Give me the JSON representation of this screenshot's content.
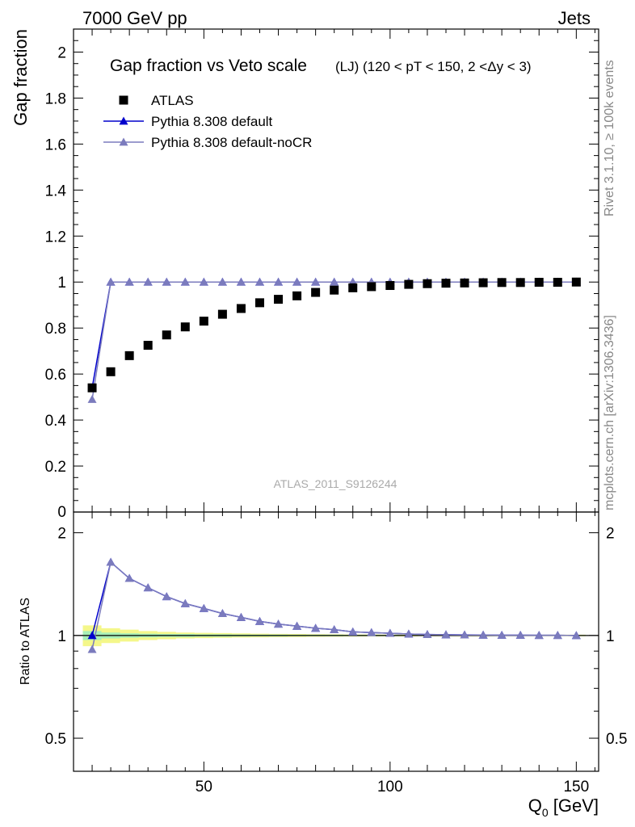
{
  "header": {
    "left": "7000 GeV pp",
    "right": "Jets"
  },
  "side_labels": {
    "rivet": "Rivet 3.1.10, ≥ 100k events",
    "mcplots": "mcplots.cern.ch [arXiv:1306.3436]"
  },
  "watermark": "ATLAS_2011_S9126244",
  "colors": {
    "data": "#000000",
    "default": "#0000cc",
    "noCR": "#7b7bbd",
    "band_inner": "#a8f0b8",
    "band_outer": "#f4f78a"
  },
  "chart_data": [
    {
      "type": "scatter",
      "title": "Gap fraction vs Veto scale",
      "subtitle": "(LJ) (120 < pT < 150, 2 <Δy < 3)",
      "ylabel": "Gap fraction",
      "xlabel": "Q0 [GeV]",
      "xlim": [
        15,
        156
      ],
      "ylim": [
        0,
        2.1
      ],
      "x_ticks": [
        50,
        100,
        150
      ],
      "y_ticks": [
        0.2,
        0.4,
        0.6,
        0.8,
        1,
        1.2,
        1.4,
        1.6,
        1.8,
        2
      ],
      "y_tick_labels": [
        "0.2",
        "0.4",
        "0.6",
        "0.8",
        "1",
        "1.2",
        "1.4",
        "1.6",
        "1.8",
        "2"
      ],
      "bottom_tick_label": "0",
      "legend_position": "top-left",
      "x": [
        20,
        25,
        30,
        35,
        40,
        45,
        50,
        55,
        60,
        65,
        70,
        75,
        80,
        85,
        90,
        95,
        100,
        105,
        110,
        115,
        120,
        125,
        130,
        135,
        140,
        145,
        150
      ],
      "series": [
        {
          "name": "ATLAS",
          "marker": "square",
          "values": [
            0.54,
            0.61,
            0.68,
            0.725,
            0.77,
            0.805,
            0.83,
            0.86,
            0.885,
            0.91,
            0.925,
            0.94,
            0.955,
            0.965,
            0.975,
            0.98,
            0.985,
            0.99,
            0.993,
            0.995,
            0.996,
            0.997,
            0.998,
            0.998,
            0.999,
            0.999,
            1.0
          ]
        },
        {
          "name": "Pythia 8.308 default",
          "marker": "triangle",
          "values": [
            0.54,
            1.0,
            1.0,
            1.0,
            1.0,
            1.0,
            1.0,
            1.0,
            1.0,
            1.0,
            1.0,
            1.0,
            1.0,
            1.0,
            1.0,
            1.0,
            1.0,
            1.0,
            1.0,
            1.0,
            1.0,
            1.0,
            1.0,
            1.0,
            1.0,
            1.0,
            1.0
          ]
        },
        {
          "name": "Pythia 8.308 default-noCR",
          "marker": "triangle",
          "values": [
            0.49,
            1.0,
            1.0,
            1.0,
            1.0,
            1.0,
            1.0,
            1.0,
            1.0,
            1.0,
            1.0,
            1.0,
            1.0,
            1.0,
            1.0,
            1.0,
            1.0,
            1.0,
            1.0,
            1.0,
            1.0,
            1.0,
            1.0,
            1.0,
            1.0,
            1.0,
            1.0
          ]
        }
      ]
    },
    {
      "type": "line",
      "ylabel": "Ratio to ATLAS",
      "xlabel": "Q0 [GeV]",
      "xlim": [
        15,
        156
      ],
      "ylim": [
        0.4,
        2.3
      ],
      "y_scale": "log",
      "x_ticks": [
        50,
        100,
        150
      ],
      "y_ticks": [
        0.5,
        1,
        2
      ],
      "y_tick_labels": [
        "0.5",
        "1",
        "2"
      ],
      "x": [
        20,
        25,
        30,
        35,
        40,
        45,
        50,
        55,
        60,
        65,
        70,
        75,
        80,
        85,
        90,
        95,
        100,
        105,
        110,
        115,
        120,
        125,
        130,
        135,
        140,
        145,
        150
      ],
      "band_inner": [
        0.03,
        0.02,
        0.015,
        0.012,
        0.01,
        0.01,
        0.008,
        0.008,
        0.007,
        0.006,
        0.006,
        0.005,
        0.005,
        0.005,
        0.004,
        0.004,
        0.004,
        0.003,
        0.003,
        0.003,
        0.003,
        0.003,
        0.003,
        0.003,
        0.003,
        0.003,
        0.003
      ],
      "band_outer": [
        0.07,
        0.05,
        0.04,
        0.03,
        0.025,
        0.02,
        0.018,
        0.016,
        0.014,
        0.012,
        0.011,
        0.01,
        0.009,
        0.008,
        0.007,
        0.007,
        0.006,
        0.006,
        0.005,
        0.005,
        0.005,
        0.005,
        0.005,
        0.005,
        0.005,
        0.005,
        0.005
      ],
      "series": [
        {
          "name": "Pythia 8.308 default",
          "values": [
            1.0,
            1.64,
            1.47,
            1.38,
            1.3,
            1.24,
            1.2,
            1.16,
            1.13,
            1.1,
            1.08,
            1.065,
            1.05,
            1.04,
            1.025,
            1.02,
            1.015,
            1.01,
            1.007,
            1.005,
            1.004,
            1.003,
            1.002,
            1.002,
            1.001,
            1.001,
            1.0
          ]
        },
        {
          "name": "Pythia 8.308 default-noCR",
          "values": [
            0.91,
            1.64,
            1.47,
            1.38,
            1.3,
            1.24,
            1.2,
            1.16,
            1.13,
            1.1,
            1.08,
            1.065,
            1.05,
            1.04,
            1.025,
            1.02,
            1.015,
            1.01,
            1.007,
            1.005,
            1.004,
            1.003,
            1.002,
            1.002,
            1.001,
            1.001,
            1.0
          ]
        }
      ]
    }
  ]
}
